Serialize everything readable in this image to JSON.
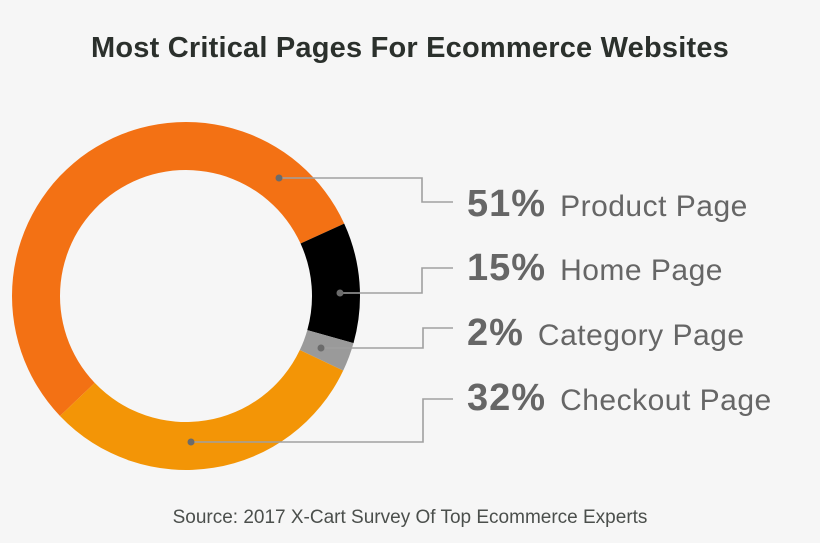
{
  "title": "Most Critical Pages For Ecommerce Websites",
  "source": "Source: 2017 X-Cart Survey Of Top Ecommerce Experts",
  "legend": [
    {
      "pct": "51%",
      "label": "Product Page"
    },
    {
      "pct": "15%",
      "label": "Home Page"
    },
    {
      "pct": "2%",
      "label": "Category Page"
    },
    {
      "pct": "32%",
      "label": "Checkout Page"
    }
  ],
  "colors": {
    "product": "#f37114",
    "home": "#000000",
    "category": "#9a9a9a",
    "checkout": "#f39506",
    "background": "#f6f6f6",
    "leader_line": "#a0a0a0",
    "leader_dot": "#6b6b6b",
    "text": "#666666",
    "title": "#2b302c"
  },
  "chart_data": {
    "type": "pie",
    "variant": "donut",
    "title": "Most Critical Pages For Ecommerce Websites",
    "categories": [
      "Product Page",
      "Home Page",
      "Category Page",
      "Checkout Page"
    ],
    "values": [
      51,
      15,
      2,
      32
    ],
    "unit": "%",
    "colors": [
      "#f37114",
      "#000000",
      "#9a9a9a",
      "#f39506"
    ],
    "legend_position": "right",
    "annotations": [
      "Source: 2017 X-Cart Survey Of Top Ecommerce Experts"
    ]
  }
}
